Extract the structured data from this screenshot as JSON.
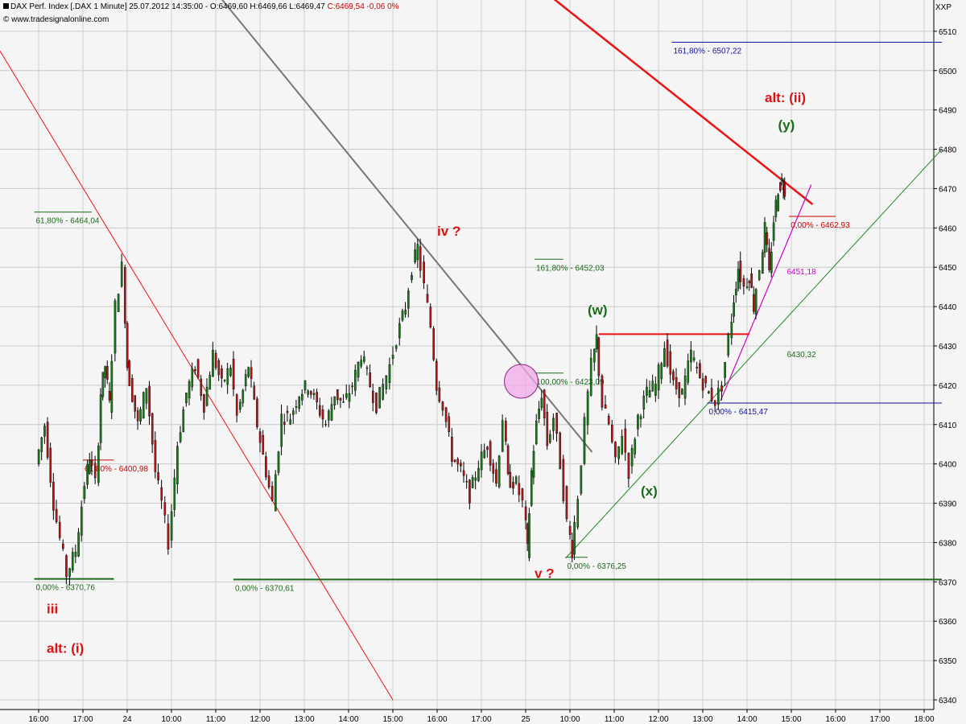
{
  "header": {
    "instrument": "DAX Perf. Index [.DAX  1 Minute]",
    "ohlc": "25.07.2012 14:35:00 - O:6469,60 H:6469,66 L:6469,47",
    "close_change": "C:6469,54 -0,06 0%",
    "watermark": "© www.tradesignalonline.com",
    "symbol": "XXP"
  },
  "chart_data": {
    "type": "candlestick",
    "title": "DAX Perf. Index [.DAX  1 Minute]",
    "ylim": [
      6340,
      6515
    ],
    "y_ticks": [
      6340,
      6350,
      6360,
      6370,
      6380,
      6390,
      6400,
      6410,
      6420,
      6430,
      6440,
      6450,
      6460,
      6470,
      6480,
      6490,
      6500,
      6510
    ],
    "x_ticks": [
      "16:00",
      "17:00",
      "24",
      "10:00",
      "11:00",
      "12:00",
      "13:00",
      "14:00",
      "15:00",
      "16:00",
      "17:00",
      "25",
      "10:00",
      "11:00",
      "12:00",
      "13:00",
      "14:00",
      "15:00",
      "16:00",
      "17:00",
      "18:00"
    ],
    "price_path": [
      {
        "t": 0,
        "p": 6400
      },
      {
        "t": 0.2,
        "p": 6410
      },
      {
        "t": 0.4,
        "p": 6390
      },
      {
        "t": 0.7,
        "p": 6372
      },
      {
        "t": 0.9,
        "p": 6378
      },
      {
        "t": 1.1,
        "p": 6395
      },
      {
        "t": 1.2,
        "p": 6402
      },
      {
        "t": 1.35,
        "p": 6395
      },
      {
        "t": 1.45,
        "p": 6418
      },
      {
        "t": 1.55,
        "p": 6425
      },
      {
        "t": 1.65,
        "p": 6415
      },
      {
        "t": 1.8,
        "p": 6440
      },
      {
        "t": 1.95,
        "p": 6450
      },
      {
        "t": 2.05,
        "p": 6425
      },
      {
        "t": 2.3,
        "p": 6410
      },
      {
        "t": 2.5,
        "p": 6420
      },
      {
        "t": 2.7,
        "p": 6398
      },
      {
        "t": 2.85,
        "p": 6390
      },
      {
        "t": 3.0,
        "p": 6380
      },
      {
        "t": 3.2,
        "p": 6405
      },
      {
        "t": 3.4,
        "p": 6418
      },
      {
        "t": 3.6,
        "p": 6425
      },
      {
        "t": 3.8,
        "p": 6415
      },
      {
        "t": 4.0,
        "p": 6428
      },
      {
        "t": 4.2,
        "p": 6420
      },
      {
        "t": 4.4,
        "p": 6425
      },
      {
        "t": 4.55,
        "p": 6412
      },
      {
        "t": 4.8,
        "p": 6425
      },
      {
        "t": 5.0,
        "p": 6410
      },
      {
        "t": 5.2,
        "p": 6398
      },
      {
        "t": 5.35,
        "p": 6390
      },
      {
        "t": 5.55,
        "p": 6412
      },
      {
        "t": 5.75,
        "p": 6412
      },
      {
        "t": 5.95,
        "p": 6418
      },
      {
        "t": 6.15,
        "p": 6420
      },
      {
        "t": 6.35,
        "p": 6415
      },
      {
        "t": 6.55,
        "p": 6410
      },
      {
        "t": 6.75,
        "p": 6418
      },
      {
        "t": 6.95,
        "p": 6415
      },
      {
        "t": 7.15,
        "p": 6420
      },
      {
        "t": 7.35,
        "p": 6428
      },
      {
        "t": 7.55,
        "p": 6420
      },
      {
        "t": 7.7,
        "p": 6415
      },
      {
        "t": 7.85,
        "p": 6420
      },
      {
        "t": 8.0,
        "p": 6425
      },
      {
        "t": 8.15,
        "p": 6432
      },
      {
        "t": 8.35,
        "p": 6440
      },
      {
        "t": 8.5,
        "p": 6450
      },
      {
        "t": 8.62,
        "p": 6455
      },
      {
        "t": 8.78,
        "p": 6445
      },
      {
        "t": 8.92,
        "p": 6435
      },
      {
        "t": 9.05,
        "p": 6420
      },
      {
        "t": 9.2,
        "p": 6415
      },
      {
        "t": 9.4,
        "p": 6402
      },
      {
        "t": 9.6,
        "p": 6398
      },
      {
        "t": 9.8,
        "p": 6392
      },
      {
        "t": 10.0,
        "p": 6400
      },
      {
        "t": 10.2,
        "p": 6405
      },
      {
        "t": 10.4,
        "p": 6395
      },
      {
        "t": 10.55,
        "p": 6412
      },
      {
        "t": 10.65,
        "p": 6396
      },
      {
        "t": 10.85,
        "p": 6395
      },
      {
        "t": 11.0,
        "p": 6390
      },
      {
        "t": 11.08,
        "p": 6378
      },
      {
        "t": 11.18,
        "p": 6398
      },
      {
        "t": 11.3,
        "p": 6410
      },
      {
        "t": 11.42,
        "p": 6418
      },
      {
        "t": 11.55,
        "p": 6405
      },
      {
        "t": 11.7,
        "p": 6412
      },
      {
        "t": 11.85,
        "p": 6400
      },
      {
        "t": 12.0,
        "p": 6385
      },
      {
        "t": 12.1,
        "p": 6378
      },
      {
        "t": 12.25,
        "p": 6392
      },
      {
        "t": 12.4,
        "p": 6410
      },
      {
        "t": 12.55,
        "p": 6425
      },
      {
        "t": 12.65,
        "p": 6432
      },
      {
        "t": 12.8,
        "p": 6415
      },
      {
        "t": 12.95,
        "p": 6410
      },
      {
        "t": 13.1,
        "p": 6400
      },
      {
        "t": 13.25,
        "p": 6408
      },
      {
        "t": 13.4,
        "p": 6398
      },
      {
        "t": 13.6,
        "p": 6412
      },
      {
        "t": 13.8,
        "p": 6418
      },
      {
        "t": 14.0,
        "p": 6420
      },
      {
        "t": 14.2,
        "p": 6430
      },
      {
        "t": 14.4,
        "p": 6420
      },
      {
        "t": 14.6,
        "p": 6418
      },
      {
        "t": 14.8,
        "p": 6428
      },
      {
        "t": 15.0,
        "p": 6422
      },
      {
        "t": 15.2,
        "p": 6418
      },
      {
        "t": 15.35,
        "p": 6416
      },
      {
        "t": 15.5,
        "p": 6420
      },
      {
        "t": 15.65,
        "p": 6432
      },
      {
        "t": 15.75,
        "p": 6442
      },
      {
        "t": 15.85,
        "p": 6450
      },
      {
        "t": 16.0,
        "p": 6445
      },
      {
        "t": 16.1,
        "p": 6448
      },
      {
        "t": 16.2,
        "p": 6440
      },
      {
        "t": 16.35,
        "p": 6450
      },
      {
        "t": 16.45,
        "p": 6460
      },
      {
        "t": 16.55,
        "p": 6448
      },
      {
        "t": 16.65,
        "p": 6462
      },
      {
        "t": 16.75,
        "p": 6470
      },
      {
        "t": 16.82,
        "p": 6472
      },
      {
        "t": 16.88,
        "p": 6470
      }
    ],
    "annotations": {
      "fib_levels": [
        {
          "label": "161,80% - 6507,22",
          "value": 6507.22,
          "color": "#1010a0",
          "t_from": 14.3,
          "t_to": 20.4
        },
        {
          "label": "0,00% - 6462,93",
          "value": 6462.93,
          "color": "#cc0000",
          "t_from": 16.95,
          "t_to": 18.0
        },
        {
          "label": "61,80% - 6464,04",
          "value": 6464.04,
          "color": "#1a6b1a",
          "t_from": -0.1,
          "t_to": 1.2
        },
        {
          "label": "161,80% - 6452,03",
          "value": 6452.03,
          "color": "#1a6b1a",
          "t_from": 11.2,
          "t_to": 11.85
        },
        {
          "label": "100,00% - 6423,09",
          "value": 6423.09,
          "color": "#1a6b1a",
          "t_from": 11.2,
          "t_to": 11.85
        },
        {
          "label": "0,00% - 6415,47",
          "value": 6415.47,
          "color": "#1010a0",
          "t_from": 15.1,
          "t_to": 20.4
        },
        {
          "label": "61,80% - 6400,98",
          "value": 6400.98,
          "color": "#cc0000",
          "t_from": 1.0,
          "t_to": 1.7
        },
        {
          "label": "0,00% - 6376,25",
          "value": 6376.25,
          "color": "#1a6b1a",
          "t_from": 11.9,
          "t_to": 12.4
        },
        {
          "label": "0,00% - 6370,76",
          "value": 6370.76,
          "color": "#1a6b1a",
          "t_from": -0.1,
          "t_to": 1.7
        },
        {
          "label": "0,00% - 6370,61",
          "value": 6370.61,
          "color": "#1a6b1a",
          "t_from": 4.4,
          "t_to": 20.4
        }
      ],
      "resistance_line": {
        "value": 6433,
        "t_from": 12.65,
        "t_to": 16.05
      },
      "trend_labels": [
        {
          "label": "6451,18",
          "color": "#cc00cc",
          "t": 16.9,
          "value": 6449
        },
        {
          "label": "6430,32",
          "color": "#1a6b1a",
          "t": 16.9,
          "value": 6428
        }
      ],
      "wave_labels": [
        {
          "label": "iv ?",
          "color": "#dd1111",
          "t": 9.0,
          "value": 6458
        },
        {
          "label": "v ?",
          "color": "#dd1111",
          "t": 11.2,
          "value": 6371
        },
        {
          "label": "(w)",
          "color": "#1a6b1a",
          "t": 12.4,
          "value": 6438
        },
        {
          "label": "(x)",
          "color": "#1a6b1a",
          "t": 13.6,
          "value": 6392
        },
        {
          "label": "(y)",
          "color": "#1a6b1a",
          "t": 16.7,
          "value": 6485
        },
        {
          "label": "alt: (ii)",
          "color": "#dd1111",
          "t": 16.4,
          "value": 6492
        },
        {
          "label": "iii",
          "color": "#dd1111",
          "t": 0.0,
          "value": 6362
        },
        {
          "label": "alt: (i)",
          "color": "#dd1111",
          "t": 0.0,
          "value": 6352
        }
      ]
    }
  }
}
